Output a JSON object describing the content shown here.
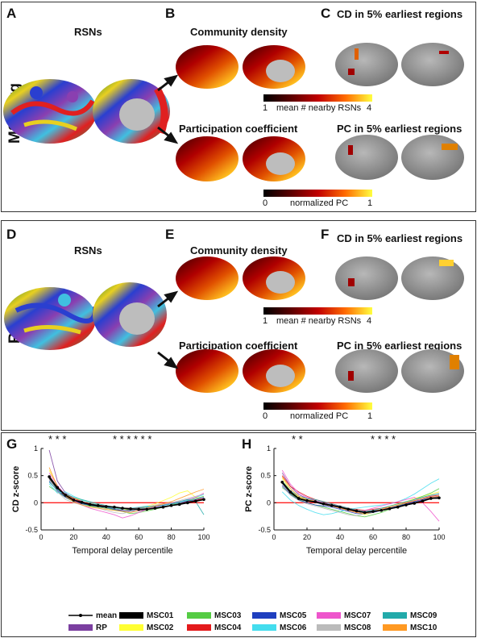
{
  "panels": {
    "A": {
      "letter": "A",
      "title": "RSNs",
      "side": "MSCavg"
    },
    "B": {
      "letter": "B",
      "title_top": "Community density",
      "title_bot": "Participation coefficient"
    },
    "C": {
      "letter": "C",
      "title_top": "CD in 5% earliest regions",
      "title_bot": "PC in 5% earliest regions"
    },
    "D": {
      "letter": "D",
      "title": "RSNs",
      "side": "RP"
    },
    "E": {
      "letter": "E",
      "title_top": "Community density",
      "title_bot": "Participation coefficient"
    },
    "F": {
      "letter": "F",
      "title_top": "CD in 5% earliest regions",
      "title_bot": "PC in 5% earliest regions"
    },
    "G": {
      "letter": "G"
    },
    "H": {
      "letter": "H"
    }
  },
  "colorbars": {
    "cd": {
      "min": "1",
      "max": "4",
      "label": "mean # nearby RSNs"
    },
    "pc": {
      "min": "0",
      "max": "1",
      "label": "normalized PC"
    }
  },
  "colors": {
    "mean": "#000000",
    "RP": "#7b3fa0",
    "MSC01": "#000000",
    "MSC02": "#ffff33",
    "MSC03": "#55cc44",
    "MSC04": "#e41a1c",
    "MSC05": "#1f3fbf",
    "MSC06": "#44ddee",
    "MSC07": "#ee55cc",
    "MSC08": "#bbbbbb",
    "MSC09": "#22aaaa",
    "MSC10": "#ff9922"
  },
  "legend": {
    "row1": [
      "mean",
      "MSC01",
      "MSC03",
      "MSC05",
      "MSC07",
      "MSC09"
    ],
    "row2": [
      "RP",
      "MSC02",
      "MSC04",
      "MSC06",
      "MSC08",
      "MSC10"
    ]
  },
  "chart_data": [
    {
      "type": "line",
      "xlabel": "Temporal delay percentile",
      "ylabel": "CD z-score",
      "xlim": [
        0,
        100
      ],
      "ylim": [
        -0.5,
        1
      ],
      "xticks": [
        "0",
        "20",
        "40",
        "60",
        "80",
        "100"
      ],
      "yticks": [
        "-0.5",
        "0",
        "0.5",
        "1"
      ],
      "stars_groups": [
        "* * *",
        "*  * * * * *"
      ],
      "x": [
        5,
        10,
        15,
        20,
        25,
        30,
        35,
        40,
        45,
        50,
        55,
        60,
        65,
        70,
        75,
        80,
        85,
        90,
        95,
        100
      ],
      "series": [
        {
          "name": "mean",
          "values": [
            0.48,
            0.28,
            0.14,
            0.05,
            0.01,
            -0.03,
            -0.05,
            -0.07,
            -0.08,
            -0.1,
            -0.11,
            -0.12,
            -0.12,
            -0.1,
            -0.08,
            -0.05,
            -0.03,
            0.0,
            0.03,
            0.06
          ]
        },
        {
          "name": "RP",
          "values": [
            0.97,
            0.4,
            0.18,
            0.08,
            0.03,
            -0.04,
            -0.08,
            -0.1,
            -0.12,
            -0.14,
            -0.16,
            -0.15,
            -0.12,
            -0.1,
            -0.08,
            -0.05,
            -0.02,
            0.02,
            0.04,
            0.07
          ]
        },
        {
          "name": "MSC01",
          "values": [
            0.45,
            0.25,
            0.12,
            0.04,
            0.0,
            -0.05,
            -0.07,
            -0.08,
            -0.1,
            -0.12,
            -0.12,
            -0.13,
            -0.12,
            -0.1,
            -0.07,
            -0.05,
            -0.02,
            0.01,
            0.04,
            0.06
          ]
        },
        {
          "name": "MSC02",
          "values": [
            0.6,
            0.3,
            0.15,
            0.08,
            0.05,
            0.0,
            -0.04,
            -0.08,
            -0.1,
            -0.12,
            -0.14,
            -0.1,
            -0.06,
            -0.02,
            0.04,
            0.1,
            0.18,
            0.22,
            0.1,
            0.05
          ]
        },
        {
          "name": "MSC03",
          "values": [
            0.3,
            0.2,
            0.1,
            0.02,
            -0.02,
            -0.06,
            -0.08,
            -0.1,
            -0.13,
            -0.16,
            -0.2,
            -0.18,
            -0.15,
            -0.12,
            -0.08,
            -0.04,
            0.0,
            0.04,
            0.08,
            0.12
          ]
        },
        {
          "name": "MSC04",
          "values": [
            0.5,
            0.28,
            0.16,
            0.08,
            0.02,
            -0.02,
            -0.04,
            -0.06,
            -0.08,
            -0.1,
            -0.1,
            -0.09,
            -0.08,
            -0.06,
            -0.04,
            -0.02,
            0.0,
            0.02,
            0.05,
            0.08
          ]
        },
        {
          "name": "MSC05",
          "values": [
            0.4,
            0.22,
            0.1,
            0.03,
            -0.02,
            -0.04,
            -0.06,
            -0.08,
            -0.12,
            -0.15,
            -0.14,
            -0.12,
            -0.1,
            -0.07,
            -0.05,
            -0.02,
            0.0,
            0.03,
            0.06,
            0.1
          ]
        },
        {
          "name": "MSC06",
          "values": [
            0.35,
            0.18,
            0.2,
            0.12,
            0.05,
            0.0,
            -0.04,
            -0.08,
            -0.1,
            -0.12,
            -0.1,
            -0.08,
            -0.06,
            -0.08,
            -0.05,
            -0.02,
            0.0,
            0.05,
            0.1,
            0.15
          ]
        },
        {
          "name": "MSC07",
          "values": [
            0.55,
            0.32,
            0.14,
            0.04,
            -0.04,
            -0.1,
            -0.14,
            -0.18,
            -0.22,
            -0.28,
            -0.24,
            -0.18,
            -0.12,
            -0.08,
            -0.04,
            0.0,
            0.02,
            0.06,
            0.1,
            0.18
          ]
        },
        {
          "name": "MSC08",
          "values": [
            0.42,
            0.2,
            0.06,
            0.0,
            -0.04,
            -0.08,
            -0.1,
            -0.14,
            -0.18,
            -0.2,
            -0.16,
            -0.12,
            -0.08,
            -0.04,
            -0.02,
            0.0,
            0.04,
            0.08,
            0.12,
            0.16
          ]
        },
        {
          "name": "MSC09",
          "values": [
            0.38,
            0.24,
            0.16,
            0.1,
            0.06,
            0.02,
            -0.02,
            -0.05,
            -0.08,
            -0.1,
            -0.12,
            -0.1,
            -0.08,
            -0.06,
            -0.04,
            -0.02,
            0.02,
            0.06,
            0.02,
            -0.22
          ]
        },
        {
          "name": "MSC10",
          "values": [
            0.65,
            0.3,
            0.12,
            0.02,
            -0.04,
            -0.08,
            -0.1,
            -0.12,
            -0.14,
            -0.16,
            -0.18,
            -0.14,
            -0.1,
            -0.06,
            -0.02,
            0.02,
            0.08,
            0.14,
            0.2,
            0.25
          ]
        }
      ]
    },
    {
      "type": "line",
      "xlabel": "Temporal delay percentile",
      "ylabel": "PC z-score",
      "xlim": [
        0,
        100
      ],
      "ylim": [
        -0.5,
        1
      ],
      "xticks": [
        "0",
        "20",
        "40",
        "60",
        "80",
        "100"
      ],
      "yticks": [
        "-0.5",
        "0",
        "0.5",
        "1"
      ],
      "stars_groups": [
        "* *",
        "* * * *"
      ],
      "x": [
        5,
        10,
        15,
        20,
        25,
        30,
        35,
        40,
        45,
        50,
        55,
        60,
        65,
        70,
        75,
        80,
        85,
        90,
        95,
        100
      ],
      "series": [
        {
          "name": "mean",
          "values": [
            0.38,
            0.2,
            0.08,
            0.04,
            0.02,
            -0.02,
            -0.05,
            -0.08,
            -0.12,
            -0.15,
            -0.18,
            -0.16,
            -0.14,
            -0.11,
            -0.08,
            -0.04,
            -0.01,
            0.03,
            0.08,
            0.09
          ]
        },
        {
          "name": "RP",
          "values": [
            0.55,
            0.3,
            0.15,
            0.08,
            0.04,
            0.0,
            -0.04,
            -0.06,
            -0.1,
            -0.14,
            -0.16,
            -0.15,
            -0.12,
            -0.1,
            -0.06,
            -0.02,
            0.02,
            0.06,
            0.1,
            0.1
          ]
        },
        {
          "name": "MSC01",
          "values": [
            0.36,
            0.18,
            0.07,
            0.03,
            0.01,
            -0.03,
            -0.06,
            -0.09,
            -0.12,
            -0.16,
            -0.18,
            -0.16,
            -0.14,
            -0.1,
            -0.07,
            -0.03,
            0.0,
            0.04,
            0.08,
            0.08
          ]
        },
        {
          "name": "MSC02",
          "values": [
            0.45,
            0.22,
            0.1,
            0.06,
            0.03,
            -0.02,
            -0.06,
            -0.1,
            -0.14,
            -0.18,
            -0.22,
            -0.18,
            -0.12,
            -0.06,
            -0.02,
            0.02,
            0.08,
            0.12,
            0.16,
            0.2
          ]
        },
        {
          "name": "MSC03",
          "values": [
            0.28,
            0.16,
            0.06,
            0.0,
            -0.04,
            -0.08,
            -0.12,
            -0.16,
            -0.2,
            -0.24,
            -0.26,
            -0.22,
            -0.18,
            -0.12,
            -0.06,
            0.0,
            0.06,
            0.12,
            0.18,
            0.26
          ]
        },
        {
          "name": "MSC04",
          "values": [
            0.5,
            0.3,
            0.2,
            0.12,
            0.06,
            0.02,
            -0.02,
            -0.06,
            -0.1,
            -0.12,
            -0.14,
            -0.12,
            -0.1,
            -0.08,
            -0.04,
            0.0,
            0.04,
            0.08,
            0.12,
            0.14
          ]
        },
        {
          "name": "MSC05",
          "values": [
            0.32,
            0.15,
            0.05,
            0.0,
            -0.04,
            -0.06,
            -0.08,
            -0.12,
            -0.16,
            -0.2,
            -0.2,
            -0.18,
            -0.14,
            -0.1,
            -0.06,
            -0.02,
            0.02,
            0.06,
            0.1,
            0.12
          ]
        },
        {
          "name": "MSC06",
          "values": [
            0.2,
            0.05,
            -0.05,
            -0.12,
            -0.18,
            -0.22,
            -0.2,
            -0.16,
            -0.12,
            -0.1,
            -0.08,
            -0.06,
            -0.04,
            -0.02,
            0.02,
            0.08,
            0.16,
            0.26,
            0.36,
            0.44
          ]
        },
        {
          "name": "MSC07",
          "values": [
            0.6,
            0.34,
            0.18,
            0.1,
            0.04,
            -0.02,
            -0.06,
            -0.1,
            -0.14,
            -0.18,
            -0.14,
            -0.1,
            -0.06,
            -0.02,
            0.02,
            0.06,
            0.1,
            0.0,
            -0.16,
            -0.34
          ]
        },
        {
          "name": "MSC08",
          "values": [
            0.3,
            0.14,
            0.04,
            -0.02,
            -0.06,
            -0.1,
            -0.14,
            -0.18,
            -0.22,
            -0.24,
            -0.2,
            -0.16,
            -0.12,
            -0.08,
            -0.04,
            0.0,
            0.06,
            0.1,
            0.14,
            0.18
          ]
        },
        {
          "name": "MSC09",
          "values": [
            0.4,
            0.22,
            0.12,
            0.08,
            0.06,
            0.02,
            -0.02,
            -0.06,
            -0.1,
            -0.14,
            -0.16,
            -0.14,
            -0.1,
            -0.06,
            -0.02,
            0.02,
            0.06,
            0.1,
            0.14,
            0.16
          ]
        },
        {
          "name": "MSC10",
          "values": [
            0.48,
            0.26,
            0.12,
            0.06,
            0.02,
            -0.02,
            -0.06,
            -0.1,
            -0.14,
            -0.18,
            -0.2,
            -0.16,
            -0.12,
            -0.08,
            -0.04,
            0.0,
            0.04,
            0.08,
            0.1,
            0.12
          ]
        }
      ]
    }
  ]
}
